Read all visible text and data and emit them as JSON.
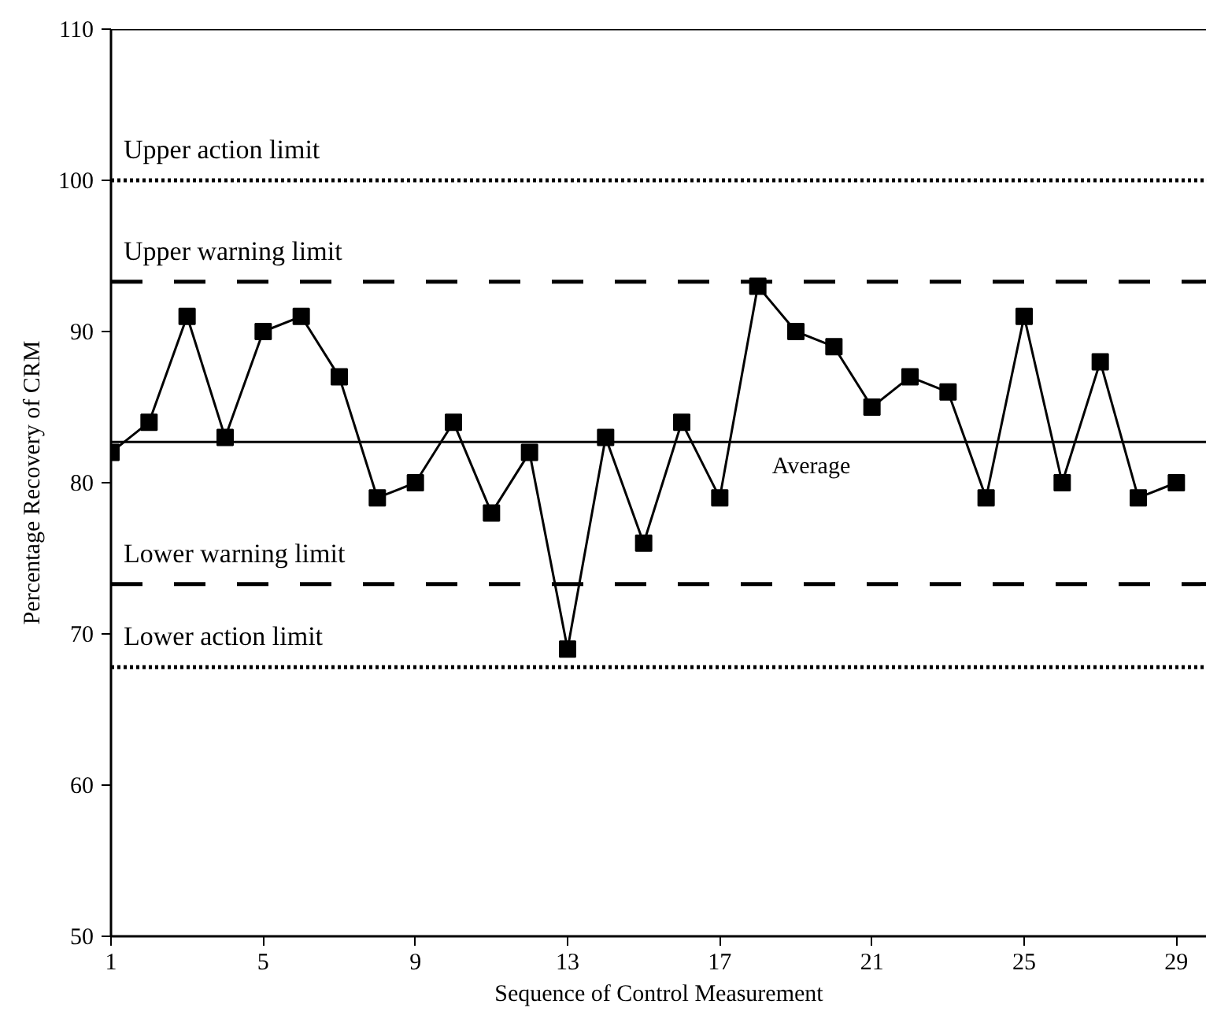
{
  "chart_data": {
    "type": "line",
    "xlabel": "Sequence of Control Measurement",
    "ylabel": "Percentage Recovery of CRM",
    "x": [
      1,
      2,
      3,
      4,
      5,
      6,
      7,
      8,
      9,
      10,
      11,
      12,
      13,
      14,
      15,
      16,
      17,
      18,
      19,
      20,
      21,
      22,
      23,
      24,
      25,
      26,
      27,
      28,
      29
    ],
    "series": [
      {
        "color": "#000000",
        "values": [
          82,
          84,
          91,
          83,
          90,
          91,
          87,
          79,
          80,
          84,
          78,
          82,
          69,
          83,
          76,
          84,
          79,
          93,
          90,
          89,
          85,
          87,
          86,
          79,
          91,
          80,
          88,
          79,
          80
        ]
      }
    ],
    "marker": "square",
    "line_style": "solid",
    "xlim": [
      1,
      29.8
    ],
    "xticks": [
      1,
      5,
      9,
      13,
      17,
      21,
      25,
      29
    ],
    "ylim": [
      50,
      110
    ],
    "yticks": [
      50,
      60,
      70,
      80,
      90,
      100,
      110
    ],
    "grid": false,
    "ref_lines": [
      {
        "axis": "y",
        "value": 100,
        "label": "Upper action limit",
        "line_style": "dotted",
        "color": "#000000"
      },
      {
        "axis": "y",
        "value": 93.3,
        "label": "Upper warning limit",
        "line_style": "dashed",
        "color": "#000000"
      },
      {
        "axis": "y",
        "value": 82.7,
        "label": "Average",
        "line_style": "solid",
        "color": "#000000"
      },
      {
        "axis": "y",
        "value": 73.3,
        "label": "Lower warning limit",
        "line_style": "dashed",
        "color": "#000000"
      },
      {
        "axis": "y",
        "value": 67.8,
        "label": "Lower action limit",
        "line_style": "dotted",
        "color": "#000000"
      }
    ]
  }
}
